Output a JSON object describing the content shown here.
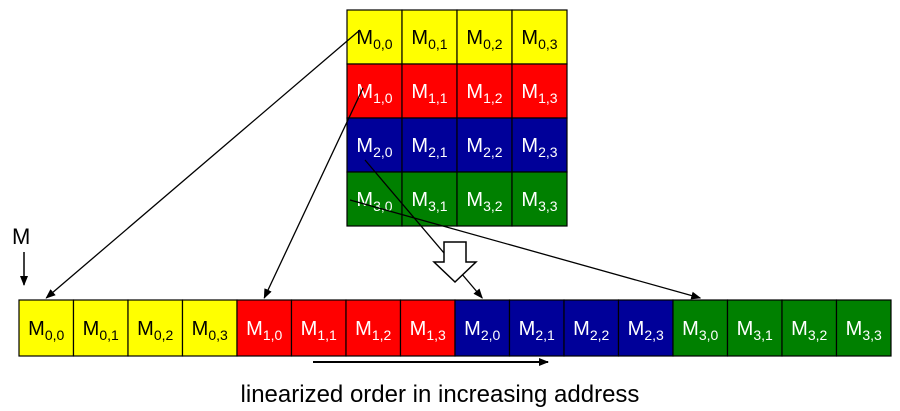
{
  "pointer_label": "M",
  "caption": "linearized order in increasing address",
  "colors": {
    "row0": "#ffff00",
    "row1": "#ff0000",
    "row2": "#000099",
    "row3": "#008000"
  },
  "matrix": {
    "rows": [
      {
        "color": "row0",
        "text_color": "#000000",
        "cells": [
          {
            "base": "M",
            "sub": "0,0"
          },
          {
            "base": "M",
            "sub": "0,1"
          },
          {
            "base": "M",
            "sub": "0,2"
          },
          {
            "base": "M",
            "sub": "0,3"
          }
        ]
      },
      {
        "color": "row1",
        "text_color": "#ffffff",
        "cells": [
          {
            "base": "M",
            "sub": "1,0"
          },
          {
            "base": "M",
            "sub": "1,1"
          },
          {
            "base": "M",
            "sub": "1,2"
          },
          {
            "base": "M",
            "sub": "1,3"
          }
        ]
      },
      {
        "color": "row2",
        "text_color": "#ffffff",
        "cells": [
          {
            "base": "M",
            "sub": "2,0"
          },
          {
            "base": "M",
            "sub": "2,1"
          },
          {
            "base": "M",
            "sub": "2,2"
          },
          {
            "base": "M",
            "sub": "2,3"
          }
        ]
      },
      {
        "color": "row3",
        "text_color": "#ffffff",
        "cells": [
          {
            "base": "M",
            "sub": "3,0"
          },
          {
            "base": "M",
            "sub": "3,1"
          },
          {
            "base": "M",
            "sub": "3,2"
          },
          {
            "base": "M",
            "sub": "3,3"
          }
        ]
      }
    ]
  },
  "linear": [
    {
      "base": "M",
      "sub": "0,0",
      "color": "row0",
      "text_color": "#000000"
    },
    {
      "base": "M",
      "sub": "0,1",
      "color": "row0",
      "text_color": "#000000"
    },
    {
      "base": "M",
      "sub": "0,2",
      "color": "row0",
      "text_color": "#000000"
    },
    {
      "base": "M",
      "sub": "0,3",
      "color": "row0",
      "text_color": "#000000"
    },
    {
      "base": "M",
      "sub": "1,0",
      "color": "row1",
      "text_color": "#ffffff"
    },
    {
      "base": "M",
      "sub": "1,1",
      "color": "row1",
      "text_color": "#ffffff"
    },
    {
      "base": "M",
      "sub": "1,2",
      "color": "row1",
      "text_color": "#ffffff"
    },
    {
      "base": "M",
      "sub": "1,3",
      "color": "row1",
      "text_color": "#ffffff"
    },
    {
      "base": "M",
      "sub": "2,0",
      "color": "row2",
      "text_color": "#ffffff"
    },
    {
      "base": "M",
      "sub": "2,1",
      "color": "row2",
      "text_color": "#ffffff"
    },
    {
      "base": "M",
      "sub": "2,2",
      "color": "row2",
      "text_color": "#ffffff"
    },
    {
      "base": "M",
      "sub": "2,3",
      "color": "row2",
      "text_color": "#ffffff"
    },
    {
      "base": "M",
      "sub": "3,0",
      "color": "row3",
      "text_color": "#ffffff"
    },
    {
      "base": "M",
      "sub": "3,1",
      "color": "row3",
      "text_color": "#ffffff"
    },
    {
      "base": "M",
      "sub": "3,2",
      "color": "row3",
      "text_color": "#ffffff"
    },
    {
      "base": "M",
      "sub": "3,3",
      "color": "row3",
      "text_color": "#ffffff"
    }
  ],
  "mappings": [
    {
      "from_row": 0,
      "to_index": 0
    },
    {
      "from_row": 1,
      "to_index": 4
    },
    {
      "from_row": 2,
      "to_index": 8
    },
    {
      "from_row": 3,
      "to_index": 12
    }
  ]
}
